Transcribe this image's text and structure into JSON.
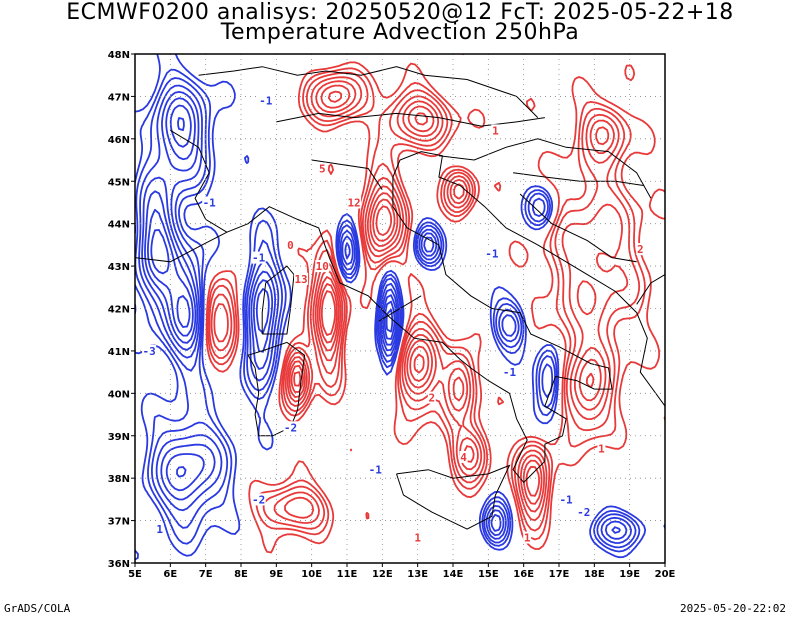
{
  "title": {
    "line1": "ECMWF0200 analisys: 20250520@12 FcT: 2025-05-22+18",
    "line2": "Temperature Advection 250hPa"
  },
  "footer": {
    "left": "GrADS/COLA",
    "right": "2025-05-20-22:02"
  },
  "map": {
    "lon_range": [
      5,
      20
    ],
    "lat_range": [
      36,
      48
    ],
    "lon_ticks": [
      "5E",
      "6E",
      "7E",
      "8E",
      "9E",
      "10E",
      "11E",
      "12E",
      "13E",
      "14E",
      "15E",
      "16E",
      "17E",
      "18E",
      "19E",
      "20E"
    ],
    "lat_ticks": [
      "36N",
      "37N",
      "38N",
      "39N",
      "40N",
      "41N",
      "42N",
      "43N",
      "44N",
      "45N",
      "46N",
      "47N",
      "48N"
    ],
    "positive_color": "#e83a3a",
    "negative_color": "#2a3ae0",
    "coastline_color": "#000000",
    "grid": "dotted",
    "contour_labels": [
      {
        "text": "1",
        "color": "pos",
        "lon": 15.2,
        "lat": 46.2
      },
      {
        "text": "5",
        "color": "pos",
        "lon": 10.3,
        "lat": 45.3
      },
      {
        "text": "12",
        "color": "pos",
        "lon": 11.2,
        "lat": 44.5
      },
      {
        "text": "10",
        "color": "pos",
        "lon": 10.3,
        "lat": 43.0
      },
      {
        "text": "13",
        "color": "pos",
        "lon": 9.7,
        "lat": 42.7
      },
      {
        "text": "-1",
        "color": "neg",
        "lon": 8.5,
        "lat": 43.2
      },
      {
        "text": "-1",
        "color": "neg",
        "lon": 7.1,
        "lat": 44.5
      },
      {
        "text": "-1",
        "color": "neg",
        "lon": 8.7,
        "lat": 46.9
      },
      {
        "text": "-1",
        "color": "neg",
        "lon": 15.1,
        "lat": 43.3
      },
      {
        "text": "-3",
        "color": "neg",
        "lon": 5.4,
        "lat": 41.0
      },
      {
        "text": "-2",
        "color": "neg",
        "lon": 9.4,
        "lat": 39.2
      },
      {
        "text": "-1",
        "color": "neg",
        "lon": 15.6,
        "lat": 40.5
      },
      {
        "text": "-1",
        "color": "neg",
        "lon": 11.8,
        "lat": 38.2
      },
      {
        "text": "-2",
        "color": "neg",
        "lon": 8.5,
        "lat": 37.5
      },
      {
        "text": "-1",
        "color": "neg",
        "lon": 17.2,
        "lat": 37.5
      },
      {
        "text": "-2",
        "color": "neg",
        "lon": 17.7,
        "lat": 37.2
      },
      {
        "text": "2",
        "color": "pos",
        "lon": 13.4,
        "lat": 39.9
      },
      {
        "text": "4",
        "color": "pos",
        "lon": 14.3,
        "lat": 38.5
      },
      {
        "text": "1",
        "color": "pos",
        "lon": 18.2,
        "lat": 38.7
      },
      {
        "text": "1",
        "color": "pos",
        "lon": 13.0,
        "lat": 36.6
      },
      {
        "text": "2",
        "color": "pos",
        "lon": 19.3,
        "lat": 43.4
      },
      {
        "text": "0",
        "color": "pos",
        "lon": 9.4,
        "lat": 43.5
      },
      {
        "text": "1",
        "color": "pos",
        "lon": 16.1,
        "lat": 36.6
      },
      {
        "text": "1",
        "color": "neg",
        "lon": 5.7,
        "lat": 36.8
      }
    ]
  }
}
